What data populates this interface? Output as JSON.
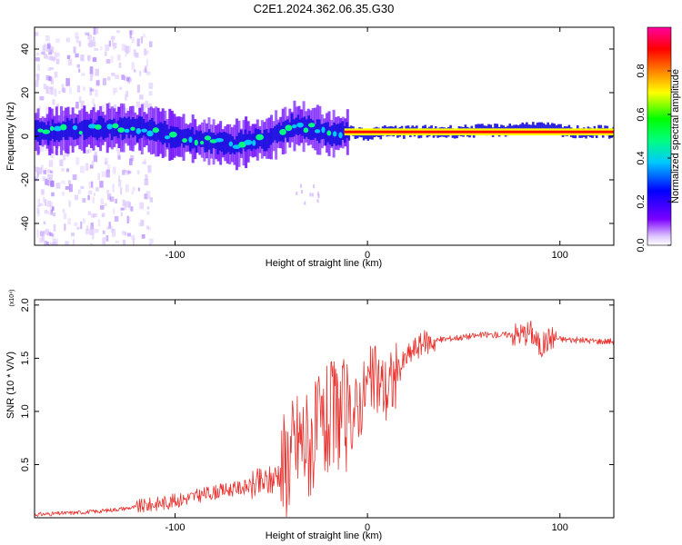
{
  "title": "C2E1.2024.362.06.35.G30",
  "chart_data": [
    {
      "type": "heatmap",
      "xlabel": "Height of straight line (km)",
      "ylabel": "Frequency (Hz)",
      "xlim": [
        -173,
        128
      ],
      "ylim": [
        -50,
        50
      ],
      "xticks": [
        -100,
        0,
        100
      ],
      "yticks": [
        40,
        20,
        0,
        -20,
        -40
      ],
      "xtick_labels": [
        "-100",
        "0",
        "100"
      ],
      "ytick_labels": [
        "40",
        "20",
        "0",
        "-20",
        "-40"
      ],
      "colorbar": {
        "label": "Normalized spectral amplitude",
        "range": [
          0,
          1
        ],
        "ticks": [
          0.0,
          0.2,
          0.4,
          0.6,
          0.8
        ],
        "tick_labels": [
          "0.0",
          "0.2",
          "0.4",
          "0.6",
          "0.8"
        ],
        "colors": [
          "#ffffff",
          "#7a00ff",
          "#0000ff",
          "#00c8ff",
          "#00ff80",
          "#00ff00",
          "#ffff00",
          "#ff8000",
          "#ff0000",
          "#ff00a0"
        ]
      },
      "ridge": [
        {
          "x": -173,
          "y": 2
        },
        {
          "x": -150,
          "y": 3
        },
        {
          "x": -130,
          "y": 4
        },
        {
          "x": -115,
          "y": 3
        },
        {
          "x": -100,
          "y": 0
        },
        {
          "x": -85,
          "y": -2
        },
        {
          "x": -70,
          "y": -4
        },
        {
          "x": -60,
          "y": -2
        },
        {
          "x": -52,
          "y": -1
        },
        {
          "x": -45,
          "y": 2
        },
        {
          "x": -38,
          "y": 5
        },
        {
          "x": -30,
          "y": 4
        },
        {
          "x": -20,
          "y": 1
        },
        {
          "x": -10,
          "y": 2
        },
        {
          "x": 0,
          "y": 1
        },
        {
          "x": 10,
          "y": 2
        },
        {
          "x": 40,
          "y": 2
        },
        {
          "x": 75,
          "y": 3
        },
        {
          "x": 85,
          "y": 4
        },
        {
          "x": 95,
          "y": 3
        },
        {
          "x": 105,
          "y": 2
        },
        {
          "x": 128,
          "y": 2
        }
      ]
    },
    {
      "type": "line",
      "xlabel": "Height of straight line (km)",
      "ylabel": "SNR (10 * V/V)",
      "scale_label": "(x10⁴)",
      "xlim": [
        -173,
        128
      ],
      "ylim": [
        0,
        2.05
      ],
      "xticks": [
        -100,
        0,
        100
      ],
      "yticks": [
        0.5,
        1.0,
        1.5,
        2.0
      ],
      "xtick_labels": [
        "-100",
        "0",
        "100"
      ],
      "ytick_labels": [
        "0.5",
        "1.0",
        "1.5",
        "2.0"
      ],
      "color": "#e8302c",
      "series": [
        {
          "name": "SNR",
          "x": [
            -173,
            -160,
            -150,
            -140,
            -130,
            -120,
            -110,
            -100,
            -90,
            -80,
            -70,
            -60,
            -50,
            -45,
            -40,
            -35,
            -30,
            -25,
            -20,
            -15,
            -10,
            -5,
            0,
            5,
            10,
            15,
            20,
            25,
            30,
            40,
            50,
            60,
            70,
            80,
            85,
            90,
            95,
            100,
            110,
            120,
            128
          ],
          "y": [
            0.03,
            0.04,
            0.05,
            0.06,
            0.08,
            0.1,
            0.13,
            0.16,
            0.2,
            0.24,
            0.27,
            0.3,
            0.35,
            0.45,
            0.6,
            0.75,
            0.7,
            0.8,
            0.9,
            1.0,
            0.9,
            1.05,
            1.25,
            1.3,
            1.2,
            1.35,
            1.5,
            1.6,
            1.65,
            1.68,
            1.7,
            1.72,
            1.72,
            1.73,
            1.75,
            1.6,
            1.7,
            1.68,
            1.67,
            1.66,
            1.66
          ]
        }
      ]
    }
  ]
}
